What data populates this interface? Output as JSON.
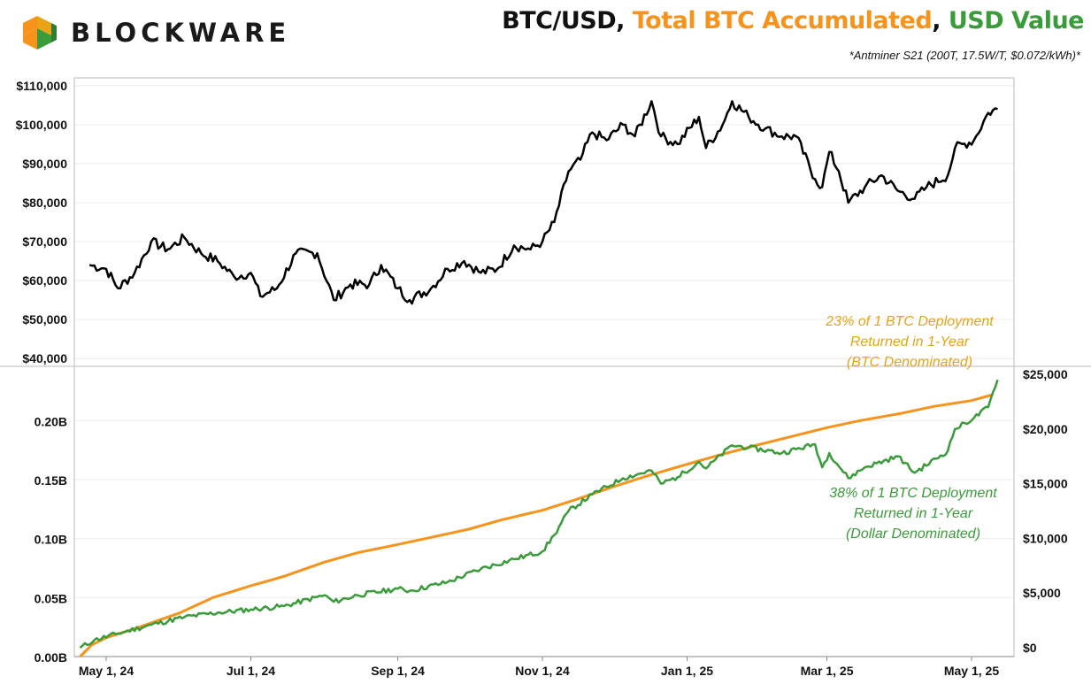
{
  "brand": {
    "name": "BLOCKWARE",
    "colors": [
      "#f7931a",
      "#3a9b3a",
      "#e8a317"
    ]
  },
  "title": {
    "part1": "BTC/USD",
    "sep1": ", ",
    "part2": "Total BTC Accumulated",
    "sep2": ", ",
    "part3": "USD Value",
    "colors": {
      "part1": "#111111",
      "part2": "#f7931a",
      "part3": "#3a9b3a"
    }
  },
  "subtitle": "*Antminer S21 (200T, 17.5W/T, $0.072/kWh)*",
  "chart_data": [
    {
      "type": "line",
      "series": [
        {
          "color": "#000000",
          "x": [
            "2024-04-24",
            "2024-05-01",
            "2024-05-06",
            "2024-05-13",
            "2024-05-20",
            "2024-05-27",
            "2024-06-03",
            "2024-06-10",
            "2024-06-17",
            "2024-06-24",
            "2024-07-01",
            "2024-07-05",
            "2024-07-12",
            "2024-07-20",
            "2024-07-29",
            "2024-08-05",
            "2024-08-12",
            "2024-08-20",
            "2024-08-25",
            "2024-09-01",
            "2024-09-06",
            "2024-09-15",
            "2024-09-22",
            "2024-09-29",
            "2024-10-06",
            "2024-10-13",
            "2024-10-20",
            "2024-10-27",
            "2024-11-01",
            "2024-11-06",
            "2024-11-12",
            "2024-11-17",
            "2024-11-22",
            "2024-11-28",
            "2024-12-05",
            "2024-12-10",
            "2024-12-17",
            "2024-12-21",
            "2024-12-28",
            "2025-01-06",
            "2025-01-09",
            "2025-01-16",
            "2025-01-20",
            "2025-01-27",
            "2025-02-03",
            "2025-02-10",
            "2025-02-16",
            "2025-02-24",
            "2025-02-27",
            "2025-03-02",
            "2025-03-06",
            "2025-03-10",
            "2025-03-17",
            "2025-03-24",
            "2025-03-31",
            "2025-04-07",
            "2025-04-12",
            "2025-04-21",
            "2025-04-24",
            "2025-05-02",
            "2025-05-08",
            "2025-05-12"
          ],
          "values": [
            64000,
            63000,
            58000,
            62000,
            70000,
            68000,
            71000,
            67000,
            65000,
            61000,
            62000,
            56000,
            58000,
            67000,
            67000,
            55000,
            59000,
            59000,
            64000,
            58000,
            55000,
            58000,
            63000,
            65000,
            62000,
            63000,
            69000,
            68000,
            70000,
            75000,
            88000,
            91000,
            98000,
            96000,
            100000,
            97000,
            106000,
            97000,
            95000,
            102000,
            94000,
            100000,
            106000,
            102000,
            99000,
            97000,
            97000,
            86000,
            84000,
            93000,
            88000,
            80000,
            84000,
            87000,
            83000,
            81000,
            84000,
            87000,
            94000,
            96000,
            103000,
            104000
          ],
          "ylim": [
            38000,
            112000
          ],
          "ticks": [
            "$40,000",
            "$50,000",
            "$60,000",
            "$70,000",
            "$80,000",
            "$90,000",
            "$100,000",
            "$110,000"
          ]
        }
      ]
    },
    {
      "type": "line",
      "x_ticks": [
        "May 1, 24",
        "Jul 1, 24",
        "Sep 1, 24",
        "Nov 1, 24",
        "Jan 1, 25",
        "Mar 1, 25",
        "May 1, 25"
      ],
      "y_left_ticks": [
        "0.00B",
        "0.05B",
        "0.10B",
        "0.15B",
        "0.20B"
      ],
      "y_right_ticks": [
        "$0",
        "$5,000",
        "$10,000",
        "$15,000",
        "$20,000",
        "$25,000"
      ],
      "series": [
        {
          "color": "#f7931a",
          "axis": "left",
          "x": [
            "2024-04-20",
            "2024-04-25",
            "2024-05-01",
            "2024-05-15",
            "2024-06-01",
            "2024-06-15",
            "2024-07-01",
            "2024-07-15",
            "2024-08-01",
            "2024-08-15",
            "2024-09-01",
            "2024-09-15",
            "2024-10-01",
            "2024-10-15",
            "2024-11-01",
            "2024-11-15",
            "2024-12-01",
            "2024-12-15",
            "2025-01-01",
            "2025-01-15",
            "2025-02-01",
            "2025-02-15",
            "2025-03-01",
            "2025-03-15",
            "2025-04-01",
            "2025-04-15",
            "2025-05-01",
            "2025-05-10"
          ],
          "values": [
            0.0,
            0.01,
            0.016,
            0.025,
            0.037,
            0.05,
            0.06,
            0.068,
            0.08,
            0.088,
            0.095,
            0.101,
            0.108,
            0.116,
            0.124,
            0.133,
            0.144,
            0.153,
            0.163,
            0.171,
            0.18,
            0.187,
            0.194,
            0.2,
            0.206,
            0.212,
            0.217,
            0.222
          ]
        },
        {
          "color": "#3a9b3a",
          "axis": "right",
          "x": [
            "2024-04-20",
            "2024-04-26",
            "2024-05-06",
            "2024-05-20",
            "2024-06-03",
            "2024-06-17",
            "2024-07-01",
            "2024-07-15",
            "2024-08-01",
            "2024-08-05",
            "2024-08-15",
            "2024-09-01",
            "2024-09-06",
            "2024-09-22",
            "2024-10-06",
            "2024-10-20",
            "2024-11-01",
            "2024-11-06",
            "2024-11-12",
            "2024-11-22",
            "2024-12-05",
            "2024-12-17",
            "2024-12-21",
            "2024-12-28",
            "2025-01-06",
            "2025-01-09",
            "2025-01-20",
            "2025-01-27",
            "2025-02-10",
            "2025-02-24",
            "2025-02-27",
            "2025-03-02",
            "2025-03-10",
            "2025-03-17",
            "2025-03-31",
            "2025-04-07",
            "2025-04-21",
            "2025-04-24",
            "2025-05-02",
            "2025-05-08",
            "2025-05-12"
          ],
          "values": [
            0,
            700,
            1300,
            2100,
            2800,
            3200,
            3500,
            3800,
            4800,
            4200,
            4800,
            5400,
            5200,
            6000,
            7200,
            8100,
            8800,
            10300,
            12500,
            14000,
            15500,
            16200,
            15000,
            15600,
            17000,
            16400,
            18500,
            18300,
            17800,
            18600,
            16500,
            17800,
            15500,
            16500,
            17500,
            16000,
            18000,
            20000,
            21000,
            22000,
            24500
          ],
          "ylim": [
            0,
            25000
          ]
        }
      ],
      "ylim_left": [
        0,
        0.24
      ]
    }
  ],
  "annotations": {
    "btc": {
      "lines": [
        "23% of 1 BTC Deployment",
        "Returned in 1-Year",
        "(BTC Denominated)"
      ],
      "color": "#e8a317"
    },
    "usd": {
      "lines": [
        "38% of  1 BTC Deployment",
        "Returned in 1-Year",
        "(Dollar Denominated)"
      ],
      "color": "#3a9b3a"
    }
  }
}
